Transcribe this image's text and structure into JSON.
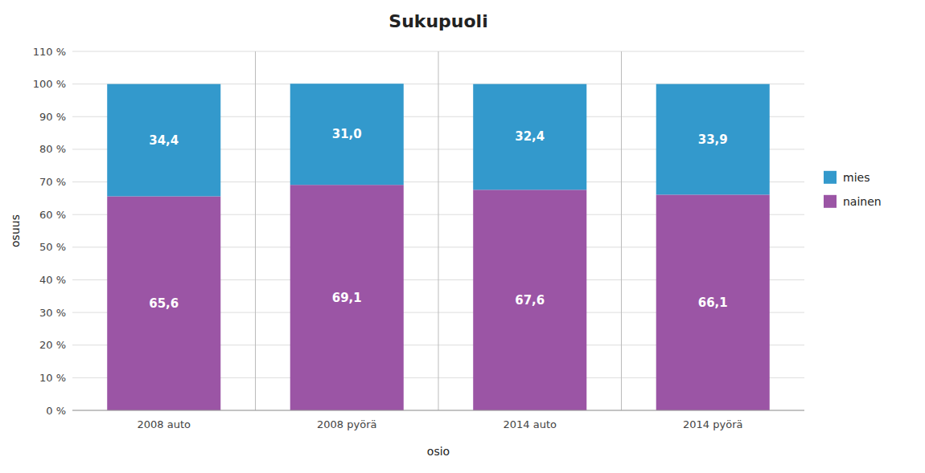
{
  "chart_data": {
    "type": "bar",
    "stacked": true,
    "title": "Sukupuoli",
    "xlabel": "osio",
    "ylabel": "osuus",
    "categories": [
      "2008 auto",
      "2008 pyörä",
      "2014 auto",
      "2014 pyörä"
    ],
    "series": [
      {
        "name": "nainen",
        "color": "#9B55A5",
        "values": [
          65.6,
          69.1,
          67.6,
          66.1
        ],
        "value_labels": [
          "65,6",
          "69,1",
          "67,6",
          "66,1"
        ]
      },
      {
        "name": "mies",
        "color": "#3399CC",
        "values": [
          34.4,
          31.0,
          32.4,
          33.9
        ],
        "value_labels": [
          "34,4",
          "31,0",
          "32,4",
          "33,9"
        ]
      }
    ],
    "ylim": [
      0,
      110
    ],
    "yticks": [
      {
        "value": 0,
        "label": "0 %"
      },
      {
        "value": 10,
        "label": "10 %"
      },
      {
        "value": 20,
        "label": "20 %"
      },
      {
        "value": 30,
        "label": "30 %"
      },
      {
        "value": 40,
        "label": "40 %"
      },
      {
        "value": 50,
        "label": "50 %"
      },
      {
        "value": 60,
        "label": "60 %"
      },
      {
        "value": 70,
        "label": "70 %"
      },
      {
        "value": 80,
        "label": "80 %"
      },
      {
        "value": 90,
        "label": "90 %"
      },
      {
        "value": 100,
        "label": "100 %"
      },
      {
        "value": 110,
        "label": "110 %"
      }
    ],
    "grid": true,
    "data_labels": true,
    "legend": "right"
  }
}
